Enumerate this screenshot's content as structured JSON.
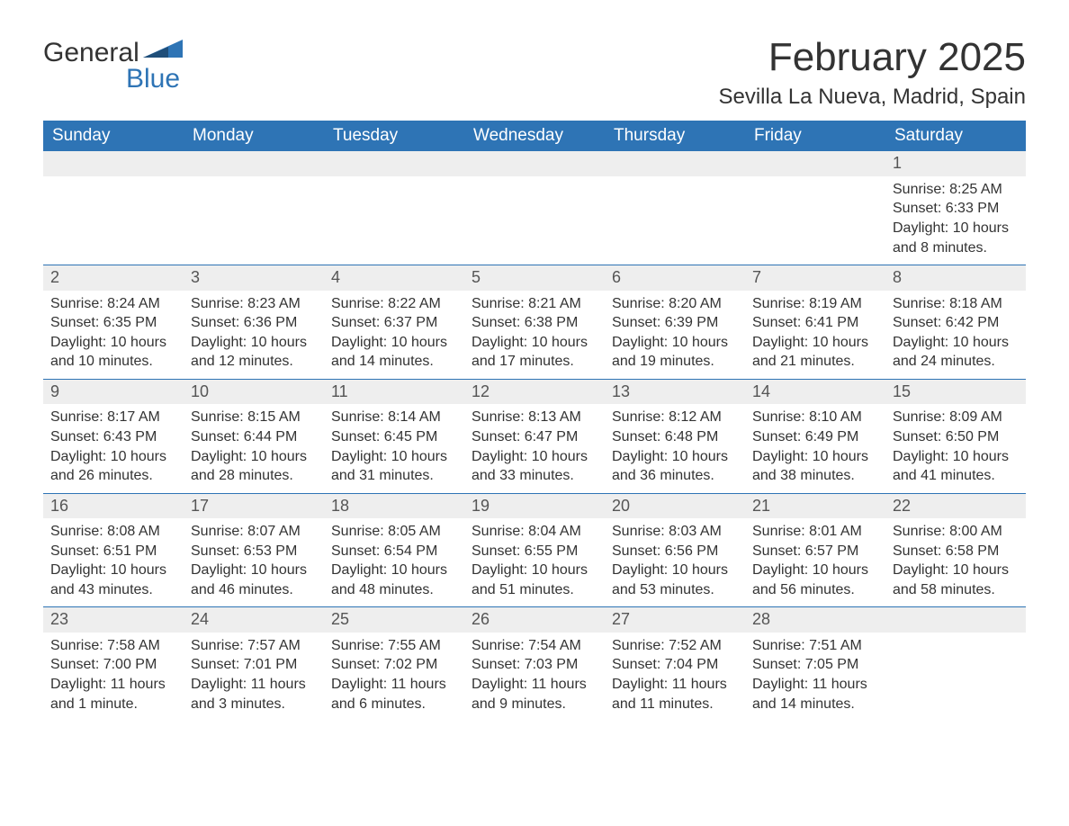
{
  "logo": {
    "word1": "General",
    "word2": "Blue",
    "accent_color": "#2e74b5"
  },
  "title": "February 2025",
  "location": "Sevilla La Nueva, Madrid, Spain",
  "colors": {
    "header_bg": "#2e74b5",
    "header_text": "#ffffff",
    "daynum_bg": "#eeeeee",
    "text": "#333333",
    "week_border": "#2e74b5"
  },
  "day_headers": [
    "Sunday",
    "Monday",
    "Tuesday",
    "Wednesday",
    "Thursday",
    "Friday",
    "Saturday"
  ],
  "weeks": [
    [
      null,
      null,
      null,
      null,
      null,
      null,
      {
        "n": "1",
        "sunrise": "Sunrise: 8:25 AM",
        "sunset": "Sunset: 6:33 PM",
        "daylight": "Daylight: 10 hours and 8 minutes."
      }
    ],
    [
      {
        "n": "2",
        "sunrise": "Sunrise: 8:24 AM",
        "sunset": "Sunset: 6:35 PM",
        "daylight": "Daylight: 10 hours and 10 minutes."
      },
      {
        "n": "3",
        "sunrise": "Sunrise: 8:23 AM",
        "sunset": "Sunset: 6:36 PM",
        "daylight": "Daylight: 10 hours and 12 minutes."
      },
      {
        "n": "4",
        "sunrise": "Sunrise: 8:22 AM",
        "sunset": "Sunset: 6:37 PM",
        "daylight": "Daylight: 10 hours and 14 minutes."
      },
      {
        "n": "5",
        "sunrise": "Sunrise: 8:21 AM",
        "sunset": "Sunset: 6:38 PM",
        "daylight": "Daylight: 10 hours and 17 minutes."
      },
      {
        "n": "6",
        "sunrise": "Sunrise: 8:20 AM",
        "sunset": "Sunset: 6:39 PM",
        "daylight": "Daylight: 10 hours and 19 minutes."
      },
      {
        "n": "7",
        "sunrise": "Sunrise: 8:19 AM",
        "sunset": "Sunset: 6:41 PM",
        "daylight": "Daylight: 10 hours and 21 minutes."
      },
      {
        "n": "8",
        "sunrise": "Sunrise: 8:18 AM",
        "sunset": "Sunset: 6:42 PM",
        "daylight": "Daylight: 10 hours and 24 minutes."
      }
    ],
    [
      {
        "n": "9",
        "sunrise": "Sunrise: 8:17 AM",
        "sunset": "Sunset: 6:43 PM",
        "daylight": "Daylight: 10 hours and 26 minutes."
      },
      {
        "n": "10",
        "sunrise": "Sunrise: 8:15 AM",
        "sunset": "Sunset: 6:44 PM",
        "daylight": "Daylight: 10 hours and 28 minutes."
      },
      {
        "n": "11",
        "sunrise": "Sunrise: 8:14 AM",
        "sunset": "Sunset: 6:45 PM",
        "daylight": "Daylight: 10 hours and 31 minutes."
      },
      {
        "n": "12",
        "sunrise": "Sunrise: 8:13 AM",
        "sunset": "Sunset: 6:47 PM",
        "daylight": "Daylight: 10 hours and 33 minutes."
      },
      {
        "n": "13",
        "sunrise": "Sunrise: 8:12 AM",
        "sunset": "Sunset: 6:48 PM",
        "daylight": "Daylight: 10 hours and 36 minutes."
      },
      {
        "n": "14",
        "sunrise": "Sunrise: 8:10 AM",
        "sunset": "Sunset: 6:49 PM",
        "daylight": "Daylight: 10 hours and 38 minutes."
      },
      {
        "n": "15",
        "sunrise": "Sunrise: 8:09 AM",
        "sunset": "Sunset: 6:50 PM",
        "daylight": "Daylight: 10 hours and 41 minutes."
      }
    ],
    [
      {
        "n": "16",
        "sunrise": "Sunrise: 8:08 AM",
        "sunset": "Sunset: 6:51 PM",
        "daylight": "Daylight: 10 hours and 43 minutes."
      },
      {
        "n": "17",
        "sunrise": "Sunrise: 8:07 AM",
        "sunset": "Sunset: 6:53 PM",
        "daylight": "Daylight: 10 hours and 46 minutes."
      },
      {
        "n": "18",
        "sunrise": "Sunrise: 8:05 AM",
        "sunset": "Sunset: 6:54 PM",
        "daylight": "Daylight: 10 hours and 48 minutes."
      },
      {
        "n": "19",
        "sunrise": "Sunrise: 8:04 AM",
        "sunset": "Sunset: 6:55 PM",
        "daylight": "Daylight: 10 hours and 51 minutes."
      },
      {
        "n": "20",
        "sunrise": "Sunrise: 8:03 AM",
        "sunset": "Sunset: 6:56 PM",
        "daylight": "Daylight: 10 hours and 53 minutes."
      },
      {
        "n": "21",
        "sunrise": "Sunrise: 8:01 AM",
        "sunset": "Sunset: 6:57 PM",
        "daylight": "Daylight: 10 hours and 56 minutes."
      },
      {
        "n": "22",
        "sunrise": "Sunrise: 8:00 AM",
        "sunset": "Sunset: 6:58 PM",
        "daylight": "Daylight: 10 hours and 58 minutes."
      }
    ],
    [
      {
        "n": "23",
        "sunrise": "Sunrise: 7:58 AM",
        "sunset": "Sunset: 7:00 PM",
        "daylight": "Daylight: 11 hours and 1 minute."
      },
      {
        "n": "24",
        "sunrise": "Sunrise: 7:57 AM",
        "sunset": "Sunset: 7:01 PM",
        "daylight": "Daylight: 11 hours and 3 minutes."
      },
      {
        "n": "25",
        "sunrise": "Sunrise: 7:55 AM",
        "sunset": "Sunset: 7:02 PM",
        "daylight": "Daylight: 11 hours and 6 minutes."
      },
      {
        "n": "26",
        "sunrise": "Sunrise: 7:54 AM",
        "sunset": "Sunset: 7:03 PM",
        "daylight": "Daylight: 11 hours and 9 minutes."
      },
      {
        "n": "27",
        "sunrise": "Sunrise: 7:52 AM",
        "sunset": "Sunset: 7:04 PM",
        "daylight": "Daylight: 11 hours and 11 minutes."
      },
      {
        "n": "28",
        "sunrise": "Sunrise: 7:51 AM",
        "sunset": "Sunset: 7:05 PM",
        "daylight": "Daylight: 11 hours and 14 minutes."
      },
      null
    ]
  ]
}
